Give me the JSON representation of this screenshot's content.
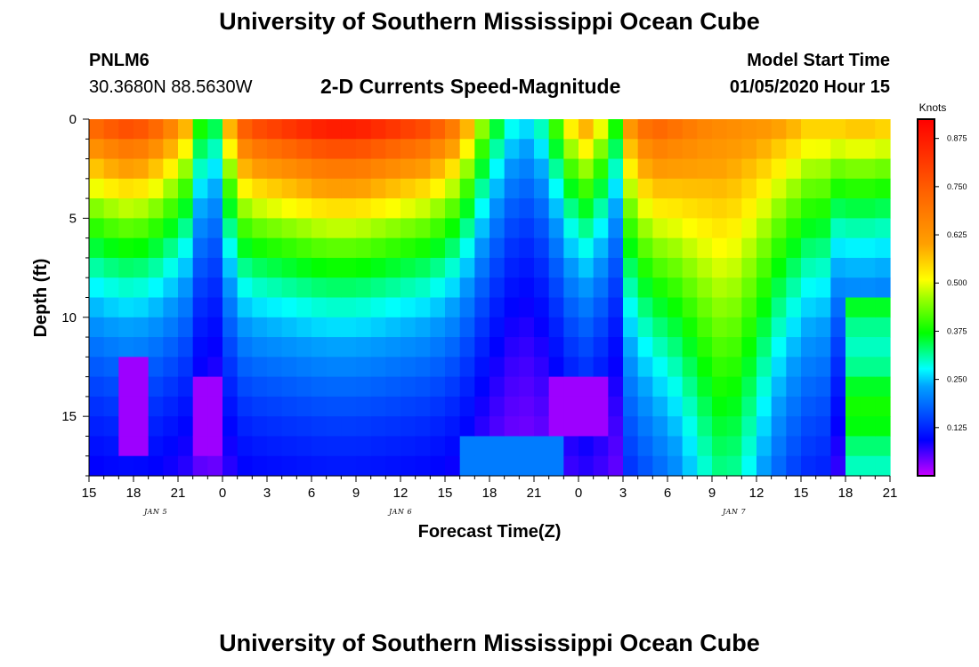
{
  "header": {
    "title": "University of Southern Mississippi Ocean Cube",
    "station_id": "PNLM6",
    "station_coords": "30.3680N 88.5630W",
    "subtitle": "2-D Currents Speed-Magnitude",
    "model_start_label": "Model Start Time",
    "model_start_value": "01/05/2020 Hour 15"
  },
  "footer": {
    "title": "University of Southern Mississippi Ocean Cube"
  },
  "chart_data": {
    "type": "heatmap",
    "title": "2-D Currents Speed-Magnitude",
    "xlabel": "Forecast Time(Z)",
    "ylabel": "Depth (ft)",
    "x_range_hours": [
      0,
      54
    ],
    "x_ticks": [
      "15",
      "18",
      "21",
      "0",
      "3",
      "6",
      "9",
      "12",
      "15",
      "18",
      "21",
      "0",
      "3",
      "6",
      "9",
      "12",
      "15",
      "18",
      "21"
    ],
    "x_date_labels": [
      {
        "label": "JAN 5",
        "hour": 4.5
      },
      {
        "label": "JAN 6",
        "hour": 21
      },
      {
        "label": "JAN 7",
        "hour": 43.5
      }
    ],
    "y_range_ft": [
      0,
      18
    ],
    "y_ticks": [
      0,
      5,
      10,
      15
    ],
    "colorbar": {
      "unit": "Knots",
      "range": [
        0,
        0.925
      ],
      "ticks": [
        "0.875",
        "0.750",
        "0.625",
        "0.500",
        "0.375",
        "0.250",
        "0.125"
      ]
    },
    "cells": {
      "nx": 55,
      "ny": 18,
      "dx_hours": 1,
      "dy_ft": 1,
      "surface_profile": [
        0.72,
        0.75,
        0.77,
        0.76,
        0.72,
        0.66,
        0.58,
        0.38,
        0.34,
        0.58,
        0.74,
        0.78,
        0.8,
        0.82,
        0.84,
        0.86,
        0.87,
        0.87,
        0.86,
        0.84,
        0.82,
        0.8,
        0.78,
        0.74,
        0.68,
        0.58,
        0.45,
        0.35,
        0.28,
        0.26,
        0.3,
        0.4,
        0.52,
        0.58,
        0.5,
        0.38,
        0.62,
        0.7,
        0.72,
        0.7,
        0.68,
        0.66,
        0.65,
        0.64,
        0.63,
        0.62,
        0.6,
        0.58,
        0.55,
        0.55,
        0.55,
        0.56,
        0.56,
        0.55,
        0.54
      ]
    }
  }
}
